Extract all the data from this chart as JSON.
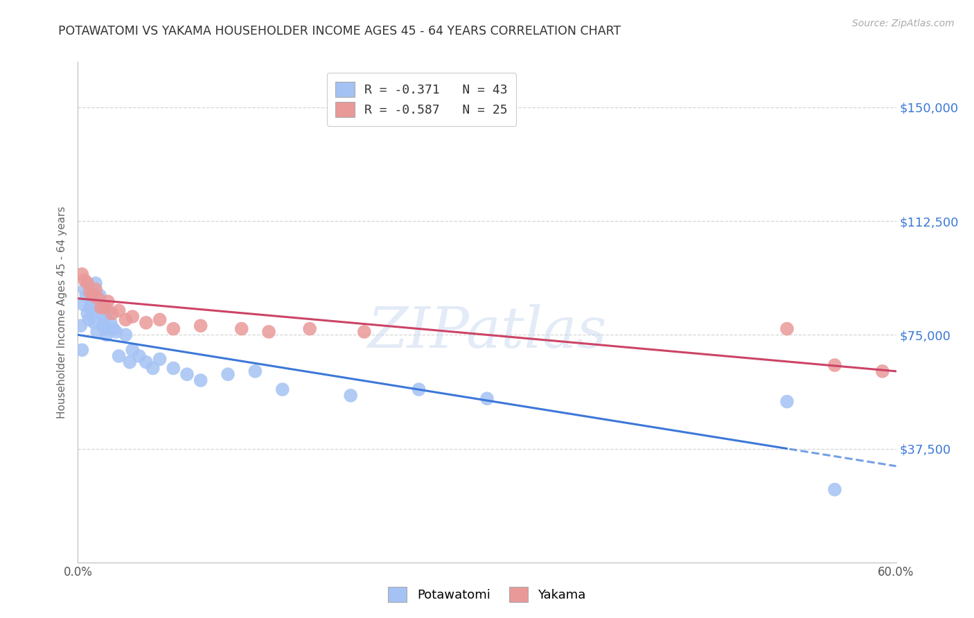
{
  "title": "POTAWATOMI VS YAKAMA HOUSEHOLDER INCOME AGES 45 - 64 YEARS CORRELATION CHART",
  "source": "Source: ZipAtlas.com",
  "ylabel": "Householder Income Ages 45 - 64 years",
  "ytick_labels": [
    "$37,500",
    "$75,000",
    "$112,500",
    "$150,000"
  ],
  "ytick_values": [
    37500,
    75000,
    112500,
    150000
  ],
  "ylim": [
    0,
    165000
  ],
  "xlim": [
    0.0,
    0.6
  ],
  "legend_entry1": "R = -0.371   N = 43",
  "legend_entry2": "R = -0.587   N = 25",
  "legend_label1": "Potawatomi",
  "legend_label2": "Yakama",
  "potawatomi_color": "#a4c2f4",
  "yakama_color": "#ea9999",
  "line_blue": "#3c78d8",
  "line_pink": "#cc4466",
  "watermark_text": "ZIPatlas",
  "potawatomi_x": [
    0.002,
    0.003,
    0.004,
    0.005,
    0.006,
    0.007,
    0.008,
    0.009,
    0.01,
    0.011,
    0.012,
    0.013,
    0.014,
    0.015,
    0.016,
    0.017,
    0.018,
    0.019,
    0.02,
    0.021,
    0.022,
    0.024,
    0.026,
    0.028,
    0.03,
    0.035,
    0.038,
    0.04,
    0.045,
    0.05,
    0.055,
    0.06,
    0.07,
    0.08,
    0.09,
    0.11,
    0.13,
    0.15,
    0.2,
    0.25,
    0.3,
    0.52,
    0.555
  ],
  "potawatomi_y": [
    78000,
    70000,
    85000,
    90000,
    88000,
    82000,
    80000,
    84000,
    86000,
    83000,
    79000,
    92000,
    76000,
    85000,
    88000,
    82000,
    78000,
    80000,
    77000,
    75000,
    83000,
    79000,
    77000,
    76000,
    68000,
    75000,
    66000,
    70000,
    68000,
    66000,
    64000,
    67000,
    64000,
    62000,
    60000,
    62000,
    63000,
    57000,
    55000,
    57000,
    54000,
    53000,
    24000
  ],
  "yakama_x": [
    0.003,
    0.005,
    0.007,
    0.009,
    0.011,
    0.013,
    0.015,
    0.017,
    0.02,
    0.022,
    0.025,
    0.03,
    0.035,
    0.04,
    0.05,
    0.06,
    0.07,
    0.09,
    0.12,
    0.14,
    0.17,
    0.21,
    0.52,
    0.555,
    0.59
  ],
  "yakama_y": [
    95000,
    93000,
    92000,
    89000,
    88000,
    90000,
    87000,
    84000,
    84000,
    86000,
    82000,
    83000,
    80000,
    81000,
    79000,
    80000,
    77000,
    78000,
    77000,
    76000,
    77000,
    76000,
    77000,
    65000,
    63000
  ],
  "grid_color": "#cccccc",
  "background_color": "#ffffff",
  "title_color": "#333333",
  "axis_label_color": "#666666",
  "right_tick_color": "#3c78d8"
}
